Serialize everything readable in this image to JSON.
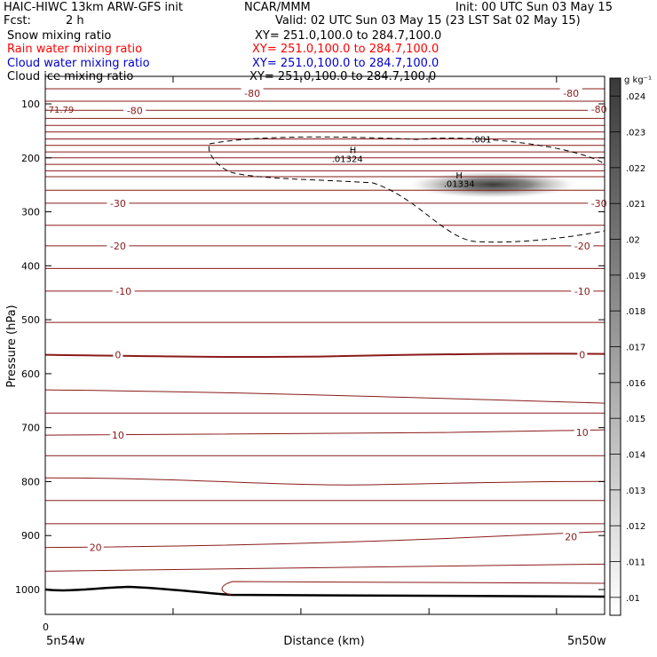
{
  "header": {
    "model": "HAIC-HIWC 13km ARW-GFS init",
    "org": "NCAR/MMM",
    "init": "Init: 00 UTC Sun 03 May 15",
    "fcst_label": "Fcst:",
    "fcst_value": "2 h",
    "valid": "Valid: 02 UTC Sun 03 May 15 (23 LST Sat 02 May 15)"
  },
  "fields": [
    {
      "label": "Snow mixing ratio",
      "xy": "XY= 251.0,100.0 to 284.7,100.0",
      "color": "#000000"
    },
    {
      "label": "Rain water mixing ratio",
      "xy": "XY= 251.0,100.0 to 284.7,100.0",
      "color": "#ff0000"
    },
    {
      "label": "Cloud water mixing ratio",
      "xy": "XY= 251.0,100.0 to 284.7,100.0",
      "color": "#0000cc"
    },
    {
      "label": "Cloud ice mixing ratio",
      "xy": "XY= 251.0,100.0 to 284.7,100.0",
      "color": "#000000"
    }
  ],
  "colors": {
    "isotherm": "#8b1a1a",
    "ground": "#000000",
    "axis": "#000000"
  },
  "chart_data": {
    "type": "heatmap",
    "ylabel": "Pressure (hPa)",
    "xlabel": "Distance (km)",
    "x_start_label": "5n54w",
    "x_end_label": "5n50w",
    "x_tick_zero": "0",
    "yticks": [
      100,
      200,
      300,
      400,
      500,
      600,
      700,
      800,
      900,
      1000
    ],
    "ylim": [
      50,
      1045
    ],
    "x_range": [
      0,
      1
    ],
    "colorbar": {
      "unit": "g kg⁻¹",
      "ticks": [
        ".01",
        ".011",
        ".012",
        ".013",
        ".014",
        ".015",
        ".016",
        ".017",
        ".018",
        ".019",
        ".02",
        ".021",
        ".022",
        ".023",
        ".024"
      ],
      "range": [
        0.0095,
        0.0245
      ]
    },
    "isotherm_labels": [
      {
        "text": "-80",
        "x": 0.37,
        "p": 80
      },
      {
        "text": "-80",
        "x": 0.16,
        "p": 112
      },
      {
        "text": "-80",
        "x": 0.94,
        "p": 80
      },
      {
        "text": "-80",
        "x": 0.99,
        "p": 110
      },
      {
        "text": "-30",
        "x": 0.13,
        "p": 284
      },
      {
        "text": "-30",
        "x": 0.99,
        "p": 284
      },
      {
        "text": "-20",
        "x": 0.13,
        "p": 363
      },
      {
        "text": "-20",
        "x": 0.96,
        "p": 363
      },
      {
        "text": "-10",
        "x": 0.14,
        "p": 447
      },
      {
        "text": "-10",
        "x": 0.96,
        "p": 447
      },
      {
        "text": "0",
        "x": 0.13,
        "p": 565
      },
      {
        "text": "0",
        "x": 0.96,
        "p": 565
      },
      {
        "text": "10",
        "x": 0.13,
        "p": 714
      },
      {
        "text": "10",
        "x": 0.96,
        "p": 709
      },
      {
        "text": "20",
        "x": 0.09,
        "p": 922
      },
      {
        "text": "20",
        "x": 0.94,
        "p": 902
      }
    ],
    "annotations": [
      {
        "text": "-71.79",
        "x": 0.0,
        "p": 110
      },
      {
        "text": "H",
        "x": 0.55,
        "p": 185
      },
      {
        "text": ".01324",
        "x": 0.54,
        "p": 201
      },
      {
        "text": "H",
        "x": 0.74,
        "p": 232
      },
      {
        "text": ".01334",
        "x": 0.74,
        "p": 247
      },
      {
        "text": ".001",
        "x": 0.78,
        "p": 165
      }
    ],
    "snow_contour_label": ".001",
    "max_values": [
      {
        "label": "H",
        "value": 0.01324,
        "x": 0.55,
        "p": 195
      },
      {
        "label": "H",
        "value": 0.01334,
        "x": 0.75,
        "p": 247
      }
    ]
  }
}
